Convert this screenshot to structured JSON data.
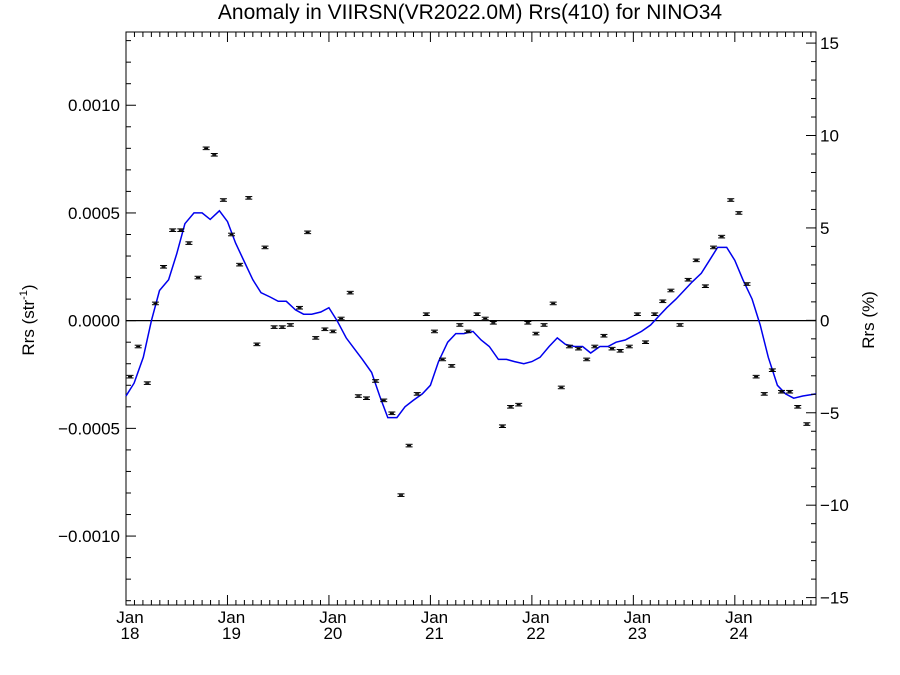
{
  "chart_data": {
    "type": "scatter",
    "title": "Anomaly in VIIRSN(VR2022.0M) Rrs(410) for NINO34",
    "ylabel_left": "Rrs (str",
    "ylabel_left_sup": "-1",
    "ylabel_left_end": ")",
    "ylabel_right": "Rrs (%)",
    "x_range": [
      2018.0,
      2024.8
    ],
    "ylim_left": [
      -0.00132,
      0.00134
    ],
    "ylim_right": [
      -15.4,
      15.6
    ],
    "x_ticks": [
      {
        "year": 2018,
        "month": "Jan",
        "label": "18"
      },
      {
        "year": 2019,
        "month": "Jan",
        "label": "19"
      },
      {
        "year": 2020,
        "month": "Jan",
        "label": "20"
      },
      {
        "year": 2021,
        "month": "Jan",
        "label": "21"
      },
      {
        "year": 2022,
        "month": "Jan",
        "label": "22"
      },
      {
        "year": 2023,
        "month": "Jan",
        "label": "23"
      },
      {
        "year": 2024,
        "month": "Jan",
        "label": "24"
      }
    ],
    "y_ticks_left": [
      {
        "value": 0.001,
        "label": "0.0010"
      },
      {
        "value": 0.0005,
        "label": "0.0005"
      },
      {
        "value": 0.0,
        "label": "0.0000"
      },
      {
        "value": -0.0005,
        "label": "−0.0005"
      },
      {
        "value": -0.001,
        "label": "−0.0010"
      }
    ],
    "y_ticks_right": [
      {
        "value": 15,
        "label": "15"
      },
      {
        "value": 10,
        "label": "10"
      },
      {
        "value": 5,
        "label": "5"
      },
      {
        "value": 0,
        "label": "0"
      },
      {
        "value": -5,
        "label": "−5"
      },
      {
        "value": -10,
        "label": "−10"
      },
      {
        "value": -15,
        "label": "−15"
      }
    ],
    "zero_line": true,
    "series": [
      {
        "kind": "points_with_errorbars",
        "color": "#000000",
        "points": [
          [
            2018.04,
            -0.00026
          ],
          [
            2018.12,
            -0.00012
          ],
          [
            2018.21,
            -0.00029
          ],
          [
            2018.29,
            8e-05
          ],
          [
            2018.37,
            0.00025
          ],
          [
            2018.46,
            0.00042
          ],
          [
            2018.54,
            0.00042
          ],
          [
            2018.62,
            0.00036
          ],
          [
            2018.71,
            0.0002
          ],
          [
            2018.79,
            0.0008
          ],
          [
            2018.87,
            0.00077
          ],
          [
            2018.96,
            0.00056
          ],
          [
            2019.04,
            0.0004
          ],
          [
            2019.12,
            0.00026
          ],
          [
            2019.21,
            0.00057
          ],
          [
            2019.29,
            -0.00011
          ],
          [
            2019.37,
            0.00034
          ],
          [
            2019.46,
            -3e-05
          ],
          [
            2019.54,
            -3e-05
          ],
          [
            2019.62,
            -2e-05
          ],
          [
            2019.71,
            6e-05
          ],
          [
            2019.79,
            0.00041
          ],
          [
            2019.87,
            -8e-05
          ],
          [
            2019.96,
            -4e-05
          ],
          [
            2020.04,
            -5e-05
          ],
          [
            2020.12,
            1e-05
          ],
          [
            2020.21,
            0.00013
          ],
          [
            2020.29,
            -0.00035
          ],
          [
            2020.37,
            -0.00036
          ],
          [
            2020.46,
            -0.00028
          ],
          [
            2020.54,
            -0.00037
          ],
          [
            2020.62,
            -0.00043
          ],
          [
            2020.71,
            -0.00081
          ],
          [
            2020.79,
            -0.00058
          ],
          [
            2020.87,
            -0.00034
          ],
          [
            2020.96,
            3e-05
          ],
          [
            2021.04,
            -5e-05
          ],
          [
            2021.12,
            -0.00018
          ],
          [
            2021.21,
            -0.00021
          ],
          [
            2021.29,
            -2e-05
          ],
          [
            2021.37,
            -5e-05
          ],
          [
            2021.46,
            3e-05
          ],
          [
            2021.54,
            1e-05
          ],
          [
            2021.62,
            -1e-05
          ],
          [
            2021.71,
            -0.00049
          ],
          [
            2021.79,
            -0.0004
          ],
          [
            2021.87,
            -0.00039
          ],
          [
            2021.96,
            -1e-05
          ],
          [
            2022.04,
            -6e-05
          ],
          [
            2022.12,
            -2e-05
          ],
          [
            2022.21,
            8e-05
          ],
          [
            2022.29,
            -0.00031
          ],
          [
            2022.37,
            -0.00012
          ],
          [
            2022.46,
            -0.00013
          ],
          [
            2022.54,
            -0.00018
          ],
          [
            2022.62,
            -0.00012
          ],
          [
            2022.71,
            -7e-05
          ],
          [
            2022.79,
            -0.00013
          ],
          [
            2022.87,
            -0.00014
          ],
          [
            2022.96,
            -0.00012
          ],
          [
            2023.04,
            3e-05
          ],
          [
            2023.12,
            -0.0001
          ],
          [
            2023.21,
            3e-05
          ],
          [
            2023.29,
            9e-05
          ],
          [
            2023.37,
            0.00014
          ],
          [
            2023.46,
            -2e-05
          ],
          [
            2023.54,
            0.00019
          ],
          [
            2023.62,
            0.00028
          ],
          [
            2023.71,
            0.00016
          ],
          [
            2023.79,
            0.00034
          ],
          [
            2023.87,
            0.00039
          ],
          [
            2023.96,
            0.00056
          ],
          [
            2024.04,
            0.0005
          ],
          [
            2024.12,
            0.00017
          ],
          [
            2024.21,
            -0.00026
          ],
          [
            2024.29,
            -0.00034
          ],
          [
            2024.37,
            -0.00023
          ],
          [
            2024.46,
            -0.00033
          ],
          [
            2024.54,
            -0.00033
          ],
          [
            2024.62,
            -0.0004
          ],
          [
            2024.71,
            -0.00048
          ]
        ]
      },
      {
        "kind": "line",
        "color": "#0000ee",
        "points": [
          [
            2018.0,
            -0.00035
          ],
          [
            2018.08,
            -0.00029
          ],
          [
            2018.17,
            -0.00017
          ],
          [
            2018.25,
            0.0
          ],
          [
            2018.33,
            0.00014
          ],
          [
            2018.42,
            0.00019
          ],
          [
            2018.5,
            0.00031
          ],
          [
            2018.58,
            0.00045
          ],
          [
            2018.67,
            0.0005
          ],
          [
            2018.75,
            0.0005
          ],
          [
            2018.83,
            0.00047
          ],
          [
            2018.92,
            0.00051
          ],
          [
            2019.0,
            0.00046
          ],
          [
            2019.08,
            0.00036
          ],
          [
            2019.17,
            0.00027
          ],
          [
            2019.25,
            0.00019
          ],
          [
            2019.33,
            0.00013
          ],
          [
            2019.42,
            0.00011
          ],
          [
            2019.5,
            9e-05
          ],
          [
            2019.58,
            9e-05
          ],
          [
            2019.67,
            5e-05
          ],
          [
            2019.75,
            3e-05
          ],
          [
            2019.83,
            3e-05
          ],
          [
            2019.92,
            4e-05
          ],
          [
            2020.0,
            6e-05
          ],
          [
            2020.08,
            0.0
          ],
          [
            2020.17,
            -8e-05
          ],
          [
            2020.25,
            -0.00013
          ],
          [
            2020.33,
            -0.00018
          ],
          [
            2020.42,
            -0.00024
          ],
          [
            2020.5,
            -0.00035
          ],
          [
            2020.58,
            -0.00045
          ],
          [
            2020.67,
            -0.00045
          ],
          [
            2020.75,
            -0.0004
          ],
          [
            2020.83,
            -0.00037
          ],
          [
            2020.92,
            -0.00034
          ],
          [
            2021.0,
            -0.0003
          ],
          [
            2021.08,
            -0.00019
          ],
          [
            2021.17,
            -0.0001
          ],
          [
            2021.25,
            -6e-05
          ],
          [
            2021.33,
            -6e-05
          ],
          [
            2021.42,
            -5e-05
          ],
          [
            2021.5,
            -9e-05
          ],
          [
            2021.58,
            -0.00012
          ],
          [
            2021.67,
            -0.00018
          ],
          [
            2021.75,
            -0.00018
          ],
          [
            2021.83,
            -0.00019
          ],
          [
            2021.92,
            -0.0002
          ],
          [
            2022.0,
            -0.00019
          ],
          [
            2022.08,
            -0.00017
          ],
          [
            2022.17,
            -0.00012
          ],
          [
            2022.25,
            -8e-05
          ],
          [
            2022.33,
            -0.00011
          ],
          [
            2022.42,
            -0.00012
          ],
          [
            2022.5,
            -0.00012
          ],
          [
            2022.58,
            -0.00015
          ],
          [
            2022.67,
            -0.00012
          ],
          [
            2022.75,
            -0.00012
          ],
          [
            2022.83,
            -0.0001
          ],
          [
            2022.92,
            -9e-05
          ],
          [
            2023.0,
            -7e-05
          ],
          [
            2023.08,
            -5e-05
          ],
          [
            2023.17,
            -2e-05
          ],
          [
            2023.25,
            2e-05
          ],
          [
            2023.33,
            6e-05
          ],
          [
            2023.42,
            0.0001
          ],
          [
            2023.5,
            0.00014
          ],
          [
            2023.58,
            0.00018
          ],
          [
            2023.67,
            0.00022
          ],
          [
            2023.75,
            0.00028
          ],
          [
            2023.83,
            0.00034
          ],
          [
            2023.92,
            0.00034
          ],
          [
            2024.0,
            0.00028
          ],
          [
            2024.08,
            0.00019
          ],
          [
            2024.17,
            0.0001
          ],
          [
            2024.25,
            -2e-05
          ],
          [
            2024.33,
            -0.00017
          ],
          [
            2024.42,
            -0.0003
          ],
          [
            2024.5,
            -0.00034
          ],
          [
            2024.58,
            -0.00036
          ],
          [
            2024.67,
            -0.00035
          ],
          [
            2024.8,
            -0.00034
          ]
        ]
      }
    ]
  }
}
